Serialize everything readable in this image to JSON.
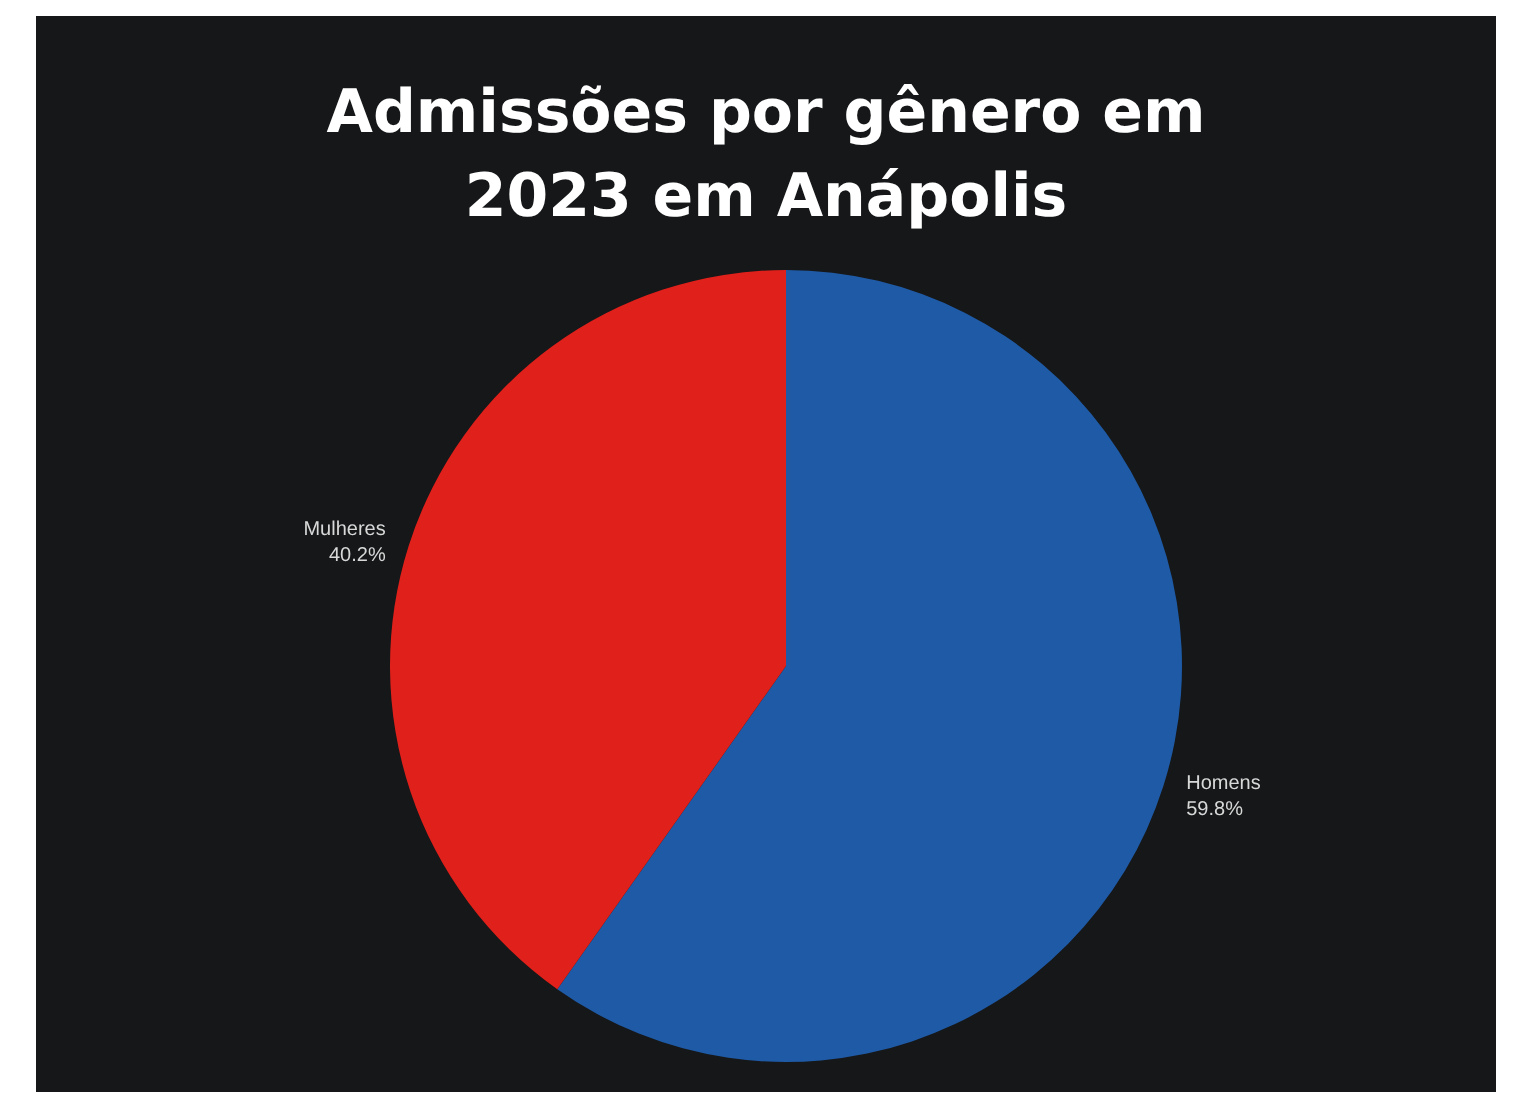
{
  "chart_data": {
    "type": "pie",
    "title": "Admissões por gênero em 2023 em Anápolis",
    "categories": [
      "Homens",
      "Mulheres"
    ],
    "values": [
      59.8,
      40.2
    ],
    "colors": [
      "#1f5aa6",
      "#e0201b"
    ],
    "value_labels": [
      "59.8%",
      "40.2%"
    ]
  }
}
